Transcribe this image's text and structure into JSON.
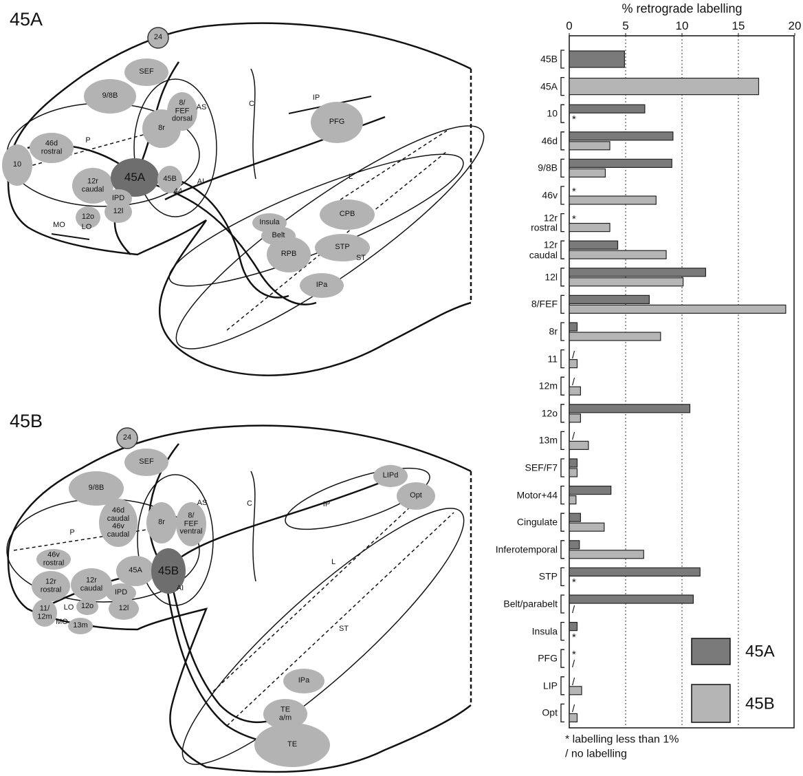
{
  "diagrams": [
    {
      "title": "45A",
      "regions": [
        "24",
        "SEF",
        "9/8B",
        "8/\nFEF\ndorsal",
        "AS",
        "8r",
        "46d\nrostral",
        "P",
        "10",
        "12r\ncaudal",
        "45A",
        "45B",
        "44",
        "AI",
        "IPD",
        "12l",
        "12o",
        "LO",
        "MO",
        "C",
        "IP",
        "PFG",
        "L",
        "CPB",
        "Insula",
        "Belt",
        "RPB",
        "STP",
        "ST",
        "IPa"
      ]
    },
    {
      "title": "45B",
      "regions": [
        "24",
        "SEF",
        "9/8B",
        "46d\ncaudal\n46v\ncaudal",
        "8r",
        "8/\nFEF\nventral",
        "AS",
        "P",
        "46v\nrostral",
        "45A",
        "45B",
        "AI",
        "12r\nrostral",
        "12r\ncaudal",
        "IPD",
        "12l",
        "LO",
        "12o",
        "11/\n12m",
        "MO",
        "13m",
        "C",
        "IP",
        "LIPd",
        "Opt",
        "L",
        "ST",
        "IPa",
        "TE\na/m",
        "TE"
      ]
    }
  ],
  "chart_data": {
    "type": "bar",
    "orientation": "horizontal",
    "title": "% retrograde labelling",
    "categories": [
      "45B",
      "45A",
      "10",
      "46d",
      "9/8B",
      "46v",
      "12r\nrostral",
      "12r\ncaudal",
      "12l",
      "8/FEF",
      "8r",
      "11",
      "12m",
      "12o",
      "13m",
      "SEF/F7",
      "Motor+44",
      "Cingulate",
      "Inferotemporal",
      "STP",
      "Belt/parabelt",
      "Insula",
      "PFG",
      "LIP",
      "Opt"
    ],
    "series": [
      {
        "name": "45A",
        "color": "#7a7a7a",
        "values": [
          4.9,
          null,
          6.7,
          9.2,
          9.1,
          null,
          null,
          4.3,
          12.1,
          7.1,
          0.7,
          null,
          null,
          10.7,
          null,
          0.7,
          3.7,
          1.0,
          0.9,
          11.6,
          11.0,
          0.7,
          null,
          null,
          null
        ],
        "notes": [
          null,
          null,
          null,
          null,
          null,
          "*",
          "*",
          null,
          null,
          null,
          null,
          "/",
          "/",
          null,
          "/",
          null,
          null,
          null,
          null,
          null,
          null,
          null,
          "*",
          "/",
          "/"
        ]
      },
      {
        "name": "45B",
        "color": "#b5b5b5",
        "values": [
          null,
          16.8,
          null,
          3.6,
          3.2,
          7.7,
          3.6,
          8.6,
          10.1,
          19.2,
          8.1,
          0.7,
          1.0,
          1.0,
          1.7,
          0.7,
          0.6,
          3.1,
          6.6,
          null,
          null,
          null,
          null,
          1.1,
          0.7
        ],
        "notes": [
          null,
          null,
          "*",
          null,
          null,
          null,
          null,
          null,
          null,
          null,
          null,
          null,
          null,
          null,
          null,
          null,
          null,
          null,
          null,
          "*",
          "/",
          "*",
          "/",
          null,
          null
        ]
      }
    ],
    "xlim": [
      0,
      20
    ],
    "xticks": [
      0,
      5,
      10,
      15,
      20
    ],
    "grid": true,
    "legend": "lower right",
    "footnotes": [
      "* labelling less than 1%",
      "/ no labelling"
    ]
  }
}
